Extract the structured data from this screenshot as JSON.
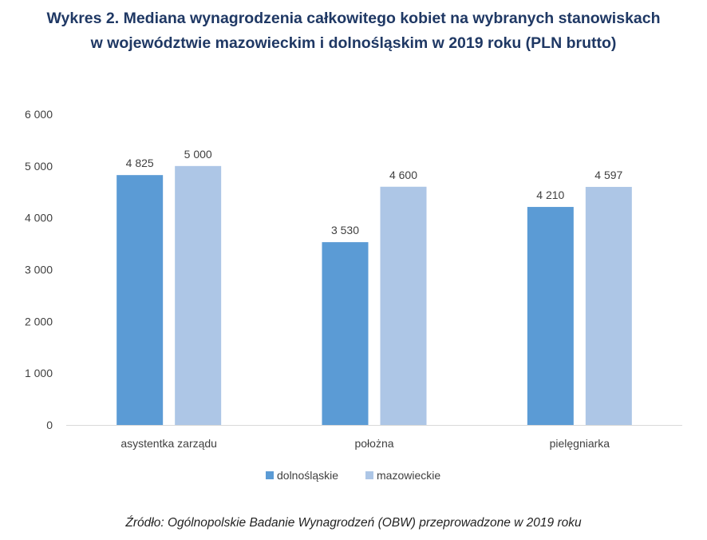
{
  "title_lines": [
    "Wykres 2. Mediana wynagrodzenia całkowitego kobiet na wybranych stanowiskach",
    "w województwie mazowieckim i dolnośląskim w 2019 roku (PLN brutto)"
  ],
  "source": "Źródło: Ogólnopolskie Badanie Wynagrodzeń (OBW) przeprowadzone w 2019 roku",
  "colors": {
    "dolnoslaskie": "#5b9bd5",
    "mazowieckie": "#adc6e6",
    "title": "#1f3864"
  },
  "chart_data": {
    "type": "bar",
    "title": "Wykres 2. Mediana wynagrodzenia całkowitego kobiet na wybranych stanowiskach w województwie mazowieckim i dolnośląskim w 2019 roku (PLN brutto)",
    "categories": [
      "asystentka zarządu",
      "położna",
      "pielęgniarka"
    ],
    "series": [
      {
        "name": "dolnośląskie",
        "values": [
          4825,
          3530,
          4210
        ],
        "labels": [
          "4 825",
          "3 530",
          "4 210"
        ]
      },
      {
        "name": "mazowieckie",
        "values": [
          5000,
          4600,
          4597
        ],
        "labels": [
          "5 000",
          "4 600",
          "4 597"
        ]
      }
    ],
    "ylim": [
      0,
      6000
    ],
    "yticks": [
      0,
      1000,
      2000,
      3000,
      4000,
      5000,
      6000
    ],
    "ytick_labels": [
      "0",
      "1 000",
      "2 000",
      "3 000",
      "4 000",
      "5 000",
      "6 000"
    ],
    "xlabel": "",
    "ylabel": "",
    "grid": false,
    "legend_position": "bottom"
  }
}
